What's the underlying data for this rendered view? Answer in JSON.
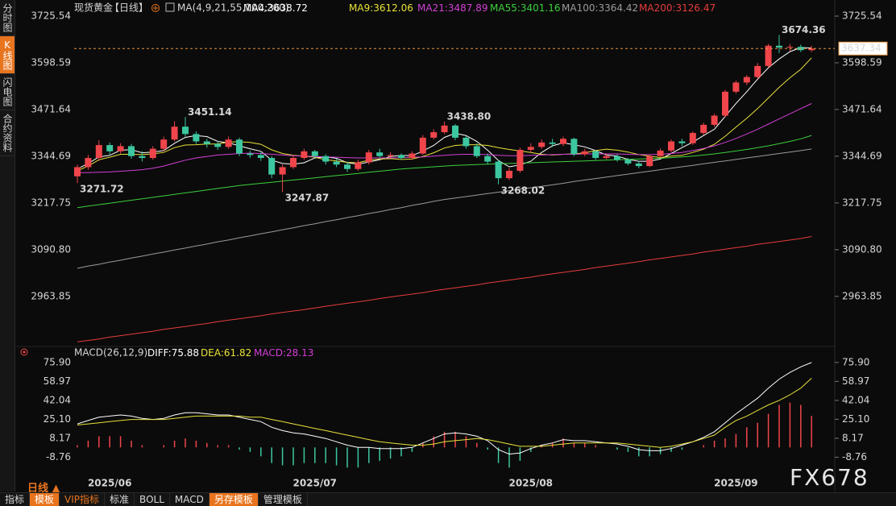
{
  "sidebar": [
    "分时图",
    "K线图",
    "闪电图",
    "合约资料"
  ],
  "toolbar": [
    "指标",
    "模板",
    "VIP指标",
    "标准",
    "BOLL",
    "MACD",
    "另存模板",
    "管理模板"
  ],
  "period_selector": "日线",
  "watermark": "FX678",
  "chart_data": [
    {
      "type": "candlestick",
      "title": "现货黄金",
      "subtitle": "【日线】",
      "indicator": "MA(4,9,21,55,100,200)",
      "up_color": "#f0454b",
      "down_color": "#3cc7a0",
      "grid": false,
      "categories": [
        null,
        null,
        null,
        "2025/06",
        null,
        null,
        null,
        null,
        null,
        null,
        null,
        null,
        null,
        null,
        null,
        null,
        null,
        null,
        null,
        null,
        null,
        null,
        "2025/07",
        null,
        null,
        null,
        null,
        null,
        null,
        null,
        null,
        null,
        null,
        null,
        null,
        null,
        null,
        null,
        null,
        null,
        null,
        null,
        "2025/08",
        null,
        null,
        null,
        null,
        null,
        null,
        null,
        null,
        null,
        null,
        null,
        null,
        null,
        null,
        null,
        null,
        null,
        null,
        "2025/09",
        null,
        null,
        null,
        null,
        null,
        null,
        null
      ],
      "open": [
        3290,
        3315,
        3340,
        3375,
        3358,
        3372,
        3345,
        3340,
        3365,
        3390,
        3425,
        3405,
        3385,
        3378,
        3370,
        3390,
        3352,
        3348,
        3340,
        3295,
        3315,
        3340,
        3358,
        3345,
        3330,
        3322,
        3310,
        3328,
        3355,
        3345,
        3348,
        3340,
        3352,
        3395,
        3410,
        3428,
        3395,
        3372,
        3345,
        3330,
        3285,
        3305,
        3362,
        3370,
        3382,
        3378,
        3392,
        3350,
        3358,
        3340,
        3345,
        3335,
        3325,
        3318,
        3345,
        3360,
        3385,
        3380,
        3408,
        3430,
        3455,
        3520,
        3545,
        3560,
        3590,
        3645,
        3640,
        3642,
        3633
      ],
      "high": [
        3322,
        3348,
        3388,
        3382,
        3380,
        3378,
        3358,
        3372,
        3398,
        3440,
        3451.14,
        3412,
        3392,
        3386,
        3398,
        3395,
        3360,
        3355,
        3345,
        3322,
        3348,
        3365,
        3362,
        3350,
        3338,
        3330,
        3335,
        3362,
        3365,
        3356,
        3352,
        3358,
        3402,
        3418,
        3438.8,
        3432,
        3400,
        3380,
        3352,
        3335,
        3312,
        3368,
        3380,
        3390,
        3392,
        3398,
        3395,
        3365,
        3362,
        3352,
        3350,
        3340,
        3332,
        3350,
        3366,
        3390,
        3392,
        3412,
        3436,
        3460,
        3525,
        3550,
        3565,
        3598,
        3650,
        3674.36,
        3650,
        3648,
        3645
      ],
      "low": [
        3271.72,
        3308,
        3332,
        3350,
        3352,
        3338,
        3330,
        3335,
        3358,
        3385,
        3398,
        3378,
        3368,
        3362,
        3365,
        3345,
        3340,
        3332,
        3285,
        3247.87,
        3310,
        3335,
        3338,
        3322,
        3315,
        3302,
        3305,
        3322,
        3340,
        3338,
        3335,
        3335,
        3348,
        3390,
        3405,
        3388,
        3365,
        3340,
        3322,
        3268.02,
        3280,
        3300,
        3355,
        3365,
        3370,
        3372,
        3345,
        3345,
        3335,
        3336,
        3330,
        3320,
        3312,
        3315,
        3340,
        3355,
        3372,
        3375,
        3402,
        3425,
        3450,
        3515,
        3538,
        3555,
        3585,
        3625,
        3630,
        3628,
        3628
      ],
      "close": [
        3315,
        3340,
        3375,
        3358,
        3372,
        3345,
        3340,
        3365,
        3390,
        3425,
        3405,
        3385,
        3378,
        3370,
        3390,
        3352,
        3348,
        3340,
        3295,
        3315,
        3340,
        3358,
        3345,
        3330,
        3322,
        3310,
        3328,
        3355,
        3345,
        3348,
        3340,
        3352,
        3395,
        3410,
        3428,
        3395,
        3372,
        3345,
        3330,
        3285,
        3305,
        3362,
        3370,
        3382,
        3378,
        3392,
        3350,
        3358,
        3340,
        3345,
        3335,
        3325,
        3318,
        3345,
        3360,
        3385,
        3380,
        3408,
        3430,
        3455,
        3520,
        3545,
        3560,
        3590,
        3645,
        3640,
        3642,
        3633,
        3637.34
      ],
      "last_price_color": "#e8943c",
      "annotations": [
        3271.72,
        3451.14,
        3247.87,
        {
          "value": 3438.8,
          "label": "3438.80"
        },
        3268.02,
        3674.36
      ],
      "series": [
        {
          "name": "MA4:",
          "color": "#ffffff",
          "values": [
            3310,
            3325,
            3343,
            3347,
            3361,
            3362.5,
            3354,
            3356,
            3360,
            3380,
            3396,
            3401,
            3398,
            3385,
            3381,
            3373,
            3365,
            3358,
            3334,
            3325,
            3323,
            3327,
            3340,
            3343,
            3339,
            3327,
            3323,
            3329,
            3335,
            3344,
            3347,
            3346,
            3359,
            3374,
            3396,
            3407,
            3401,
            3385,
            3361,
            3333,
            3316,
            3321,
            3331,
            3355,
            3373,
            3381,
            3376,
            3370,
            3360,
            3348,
            3345,
            3336,
            3331,
            3331,
            3337,
            3352,
            3368,
            3383,
            3401,
            3418,
            3453,
            3488,
            3520,
            3554,
            3585,
            3609,
            3629,
            3640,
            3638.72
          ]
        },
        {
          "name": "MA9:",
          "color": "#e8e23a",
          "values": [
            3305,
            3318,
            3335,
            3342,
            3350,
            3350,
            3349,
            3351,
            3355,
            3368,
            3375,
            3376,
            3378,
            3378,
            3383,
            3384,
            3382,
            3377,
            3362,
            3352,
            3347,
            3345,
            3342,
            3335,
            3332,
            3328,
            3327,
            3334,
            3337,
            3338,
            3336,
            3337,
            3344,
            3354,
            3367,
            3374,
            3376,
            3376,
            3374,
            3368,
            3363,
            3359,
            3355,
            3350,
            3348,
            3350,
            3351,
            3354,
            3360,
            3364,
            3361,
            3356,
            3349,
            3345,
            3341,
            3345,
            3347,
            3355,
            3364,
            3377,
            3399,
            3424,
            3448,
            3474,
            3503,
            3532,
            3558,
            3581,
            3612.06
          ]
        },
        {
          "name": "MA21:",
          "color": "#d23fd6",
          "values": [
            3300,
            3300,
            3301,
            3302,
            3304,
            3306,
            3308,
            3312,
            3318,
            3326,
            3334,
            3340,
            3344,
            3348,
            3350,
            3352,
            3353,
            3352,
            3350,
            3348,
            3346,
            3345,
            3344,
            3343,
            3342,
            3341,
            3340,
            3340,
            3340,
            3340,
            3341,
            3342,
            3343,
            3345,
            3347,
            3349,
            3350,
            3350,
            3349,
            3347,
            3346,
            3346,
            3347,
            3348,
            3349,
            3350,
            3350,
            3351,
            3351,
            3351,
            3351,
            3350,
            3349,
            3349,
            3350,
            3352,
            3355,
            3360,
            3366,
            3373,
            3382,
            3393,
            3405,
            3418,
            3432,
            3446,
            3460,
            3474,
            3487.89
          ]
        },
        {
          "name": "MA55:",
          "color": "#3ccf3c",
          "values": [
            3205,
            3209,
            3213,
            3217,
            3221,
            3225,
            3229,
            3233,
            3237,
            3241,
            3245,
            3249,
            3253,
            3257,
            3261,
            3265,
            3268,
            3271,
            3274,
            3277,
            3280,
            3283,
            3286,
            3289,
            3292,
            3295,
            3298,
            3301,
            3304,
            3307,
            3310,
            3312,
            3314,
            3316,
            3318,
            3320,
            3321,
            3322,
            3323,
            3324,
            3325,
            3326,
            3327,
            3328,
            3329,
            3330,
            3331,
            3332,
            3333,
            3334,
            3335,
            3336,
            3337,
            3338,
            3339,
            3341,
            3343,
            3345,
            3348,
            3351,
            3355,
            3359,
            3363,
            3368,
            3373,
            3379,
            3385,
            3392,
            3401.16
          ]
        },
        {
          "name": "MA100:",
          "color": "#9a9a9a",
          "values": [
            3040,
            3046,
            3051,
            3057,
            3062,
            3068,
            3073,
            3079,
            3084,
            3090,
            3095,
            3101,
            3106,
            3112,
            3117,
            3123,
            3128,
            3134,
            3139,
            3145,
            3150,
            3156,
            3161,
            3167,
            3172,
            3178,
            3183,
            3189,
            3194,
            3200,
            3205,
            3211,
            3216,
            3222,
            3227,
            3231,
            3235,
            3239,
            3243,
            3247,
            3251,
            3255,
            3259,
            3263,
            3267,
            3271,
            3276,
            3280,
            3284,
            3288,
            3292,
            3296,
            3300,
            3304,
            3308,
            3312,
            3316,
            3320,
            3324,
            3328,
            3332,
            3336,
            3340,
            3344,
            3348,
            3352,
            3356,
            3360,
            3364.42
          ]
        },
        {
          "name": "MA200:",
          "color": "#e63c3c",
          "values": [
            2840,
            2844,
            2848,
            2853,
            2857,
            2861,
            2865,
            2869,
            2874,
            2878,
            2882,
            2886,
            2890,
            2895,
            2899,
            2903,
            2907,
            2911,
            2916,
            2920,
            2924,
            2928,
            2932,
            2937,
            2941,
            2945,
            2949,
            2953,
            2958,
            2962,
            2966,
            2970,
            2974,
            2979,
            2983,
            2987,
            2991,
            2995,
            3000,
            3004,
            3008,
            3012,
            3016,
            3021,
            3025,
            3029,
            3033,
            3037,
            3042,
            3046,
            3050,
            3054,
            3058,
            3063,
            3067,
            3071,
            3075,
            3079,
            3084,
            3088,
            3092,
            3096,
            3100,
            3105,
            3109,
            3113,
            3117,
            3121,
            3126.47
          ]
        }
      ],
      "ylim": [
        2832,
        3743
      ],
      "yticks": [
        3725.54,
        3598.59,
        3471.64,
        3344.69,
        3217.75,
        {
          "value": 3090.8,
          "label": "3090.80"
        },
        2963.85
      ]
    },
    {
      "type": "macd",
      "title": "MACD(26,12,9)",
      "series": [
        {
          "name": "DIFF:",
          "type": "line",
          "color": "#ffffff",
          "values": [
            21,
            24,
            27,
            28,
            29,
            28,
            26,
            25,
            26,
            29,
            31,
            31,
            30,
            29,
            29,
            27,
            25,
            23,
            18,
            15,
            13,
            12,
            10,
            8,
            5,
            2,
            0,
            0,
            -1,
            -1,
            -1,
            0,
            4,
            8,
            12,
            13,
            12,
            10,
            6,
            -2,
            -6,
            -5,
            -1,
            2,
            4,
            7,
            6,
            6,
            5,
            4,
            3,
            1,
            -2,
            -3,
            -3,
            -1,
            2,
            5,
            9,
            14,
            22,
            30,
            37,
            44,
            53,
            61,
            67,
            72,
            75.88
          ]
        },
        {
          "name": "DEA:",
          "type": "line",
          "color": "#e8e23a",
          "values": [
            20,
            21,
            22,
            23,
            24,
            25,
            25,
            25,
            25,
            26,
            27,
            28,
            28,
            28,
            28,
            28,
            27,
            27,
            25,
            23,
            21,
            19,
            17,
            15,
            13,
            11,
            9,
            7,
            5,
            4,
            3,
            2,
            2,
            3,
            5,
            6,
            7,
            8,
            7,
            5,
            3,
            1,
            1,
            1,
            2,
            3,
            4,
            4,
            4,
            4,
            4,
            3,
            2,
            1,
            0,
            1,
            3,
            5,
            8,
            11,
            18,
            24,
            28,
            33,
            38,
            42,
            47,
            53,
            61.82
          ]
        },
        {
          "name": "MACD:",
          "type": "bar",
          "color": "#d23fd6",
          "up_color": "#f0454b",
          "down_color": "#3cc7a0",
          "values": [
            2,
            6,
            10,
            10,
            10,
            6,
            2,
            0,
            2,
            6,
            8,
            6,
            4,
            2,
            2,
            -2,
            -4,
            -8,
            -14,
            -16,
            -16,
            -14,
            -14,
            -14,
            -16,
            -18,
            -18,
            -14,
            -12,
            -10,
            -8,
            -4,
            4,
            10,
            14,
            14,
            10,
            4,
            -2,
            -14,
            -18,
            -12,
            -4,
            2,
            4,
            8,
            4,
            4,
            2,
            0,
            -2,
            -4,
            -8,
            -8,
            -6,
            -4,
            -2,
            0,
            2,
            6,
            8,
            12,
            18,
            22,
            30,
            38,
            40,
            38,
            28.13
          ]
        }
      ],
      "ylim": [
        -25,
        83
      ],
      "yticks": [
        {
          "value": 75.9,
          "label": "75.90"
        },
        58.97,
        42.04,
        {
          "value": 25.1,
          "label": "25.10"
        },
        8.17,
        -8.76
      ]
    }
  ]
}
